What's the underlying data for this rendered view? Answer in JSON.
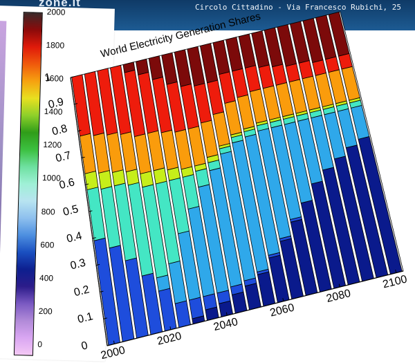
{
  "banner": {
    "site_text": "zone.it",
    "address_text": "Circolo Cittadino - Via Francesco Rubichi, 25"
  },
  "colorbar": {
    "ticks": [
      "2000",
      "1800",
      "1600",
      "1400",
      "1200",
      "1000",
      "800",
      "600",
      "400",
      "200",
      "0"
    ]
  },
  "chart_data": {
    "type": "bar",
    "stacked": true,
    "title": "World Electricity Generation Shares",
    "xlabel": "",
    "ylabel": "",
    "ylim": [
      0,
      1
    ],
    "yticks": [
      "0",
      "0.1",
      "0.2",
      "0.3",
      "0.4",
      "0.5",
      "0.6",
      "0.7",
      "0.8",
      "0.9",
      "1"
    ],
    "xticks": [
      "2000",
      "2020",
      "2040",
      "2060",
      "2080",
      "2100"
    ],
    "categories": [
      "2000",
      "2005",
      "2010",
      "2015",
      "2020",
      "2025",
      "2030",
      "2035",
      "2040",
      "2045",
      "2050",
      "2055",
      "2060",
      "2065",
      "2070",
      "2075",
      "2080",
      "2085",
      "2090",
      "2095",
      "2100"
    ],
    "series": [
      {
        "color": "#0a1a8c",
        "values": [
          0.0,
          0.0,
          0.0,
          0.0,
          0.0,
          0.0,
          0.02,
          0.04,
          0.05,
          0.07,
          0.09,
          0.12,
          0.17,
          0.22,
          0.28,
          0.34,
          0.4,
          0.44,
          0.47,
          0.5,
          0.52
        ]
      },
      {
        "color": "#1e4ddc",
        "values": [
          0.39,
          0.35,
          0.29,
          0.22,
          0.15,
          0.09,
          0.07,
          0.05,
          0.04,
          0.03,
          0.02,
          0.01,
          0.01,
          0.01,
          0.01,
          0.0,
          0.0,
          0.0,
          0.0,
          0.0,
          0.0
        ]
      },
      {
        "color": "#2fa8ea",
        "values": [
          0.0,
          0.0,
          0.0,
          0.0,
          0.05,
          0.15,
          0.25,
          0.33,
          0.4,
          0.44,
          0.48,
          0.49,
          0.45,
          0.41,
          0.35,
          0.3,
          0.24,
          0.2,
          0.17,
          0.14,
          0.12
        ]
      },
      {
        "color": "#44e6c4",
        "values": [
          0.19,
          0.22,
          0.28,
          0.34,
          0.34,
          0.3,
          0.2,
          0.12,
          0.06,
          0.03,
          0.02,
          0.02,
          0.02,
          0.02,
          0.02,
          0.02,
          0.02,
          0.02,
          0.02,
          0.02,
          0.02
        ]
      },
      {
        "color": "#c6ee1a",
        "values": [
          0.06,
          0.06,
          0.05,
          0.05,
          0.05,
          0.05,
          0.04,
          0.03,
          0.02,
          0.02,
          0.01,
          0.01,
          0.01,
          0.01,
          0.01,
          0.01,
          0.01,
          0.01,
          0.01,
          0.01,
          0.01
        ]
      },
      {
        "color": "#fa9c0c",
        "values": [
          0.14,
          0.14,
          0.14,
          0.14,
          0.14,
          0.14,
          0.14,
          0.14,
          0.14,
          0.13,
          0.12,
          0.12,
          0.12,
          0.12,
          0.12,
          0.12,
          0.12,
          0.12,
          0.12,
          0.12,
          0.12
        ]
      },
      {
        "color": "#ee1c0c",
        "values": [
          0.22,
          0.23,
          0.24,
          0.25,
          0.24,
          0.22,
          0.2,
          0.18,
          0.16,
          0.14,
          0.12,
          0.11,
          0.1,
          0.09,
          0.08,
          0.07,
          0.06,
          0.06,
          0.05,
          0.05,
          0.05
        ]
      },
      {
        "color": "#7c0a0a",
        "values": [
          0.0,
          0.0,
          0.0,
          0.0,
          0.03,
          0.05,
          0.08,
          0.11,
          0.13,
          0.14,
          0.14,
          0.12,
          0.12,
          0.12,
          0.13,
          0.14,
          0.15,
          0.15,
          0.16,
          0.16,
          0.16
        ]
      }
    ],
    "grid": true,
    "legend": "none"
  }
}
